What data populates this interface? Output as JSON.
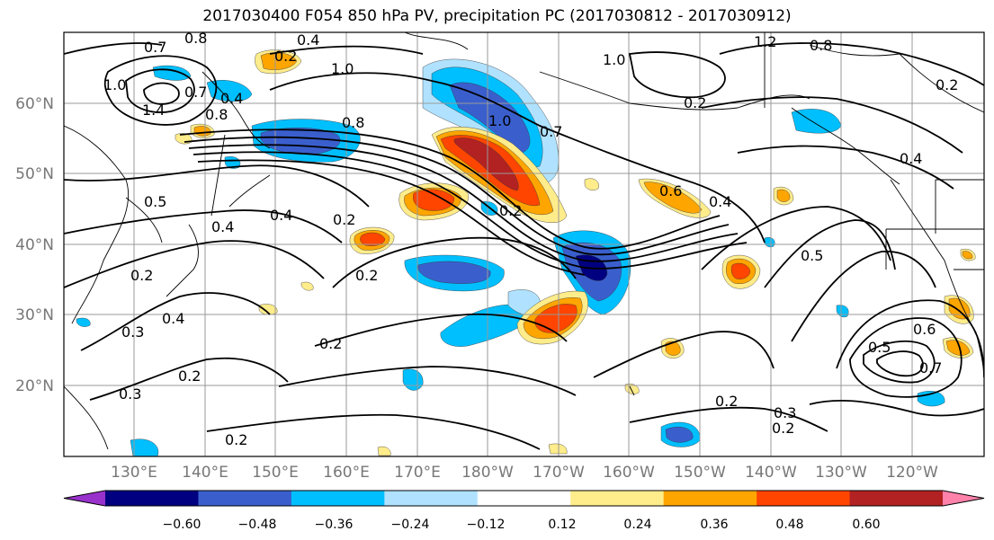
{
  "title": "2017030400 F054 850 hPa PV, precipitation PC (2017030812 - 2017030912)",
  "map": {
    "lat_ticks": [
      "60°N",
      "50°N",
      "40°N",
      "30°N",
      "20°N"
    ],
    "lon_ticks": [
      "130°E",
      "140°E",
      "150°E",
      "160°E",
      "170°E",
      "180°W",
      "170°W",
      "160°W",
      "150°W",
      "140°W",
      "130°W",
      "120°W"
    ],
    "contour_labels": [
      "0.7",
      "0.8",
      "0.4",
      "0.2",
      "1.0",
      "1.0",
      "1.0",
      "0.7",
      "0.4",
      "1.4",
      "0.8",
      "0.8",
      "1.0",
      "0.7",
      "0.6",
      "0.4",
      "0.4",
      "0.5",
      "0.4",
      "0.4",
      "0.2",
      "0.5",
      "0.2",
      "0.2",
      "0.4",
      "0.3",
      "0.2",
      "0.2",
      "0.3",
      "0.2",
      "0.2",
      "0.5",
      "0.6",
      "0.7",
      "0.3",
      "0.2",
      "0.2",
      "0.2",
      "0.2",
      "1.2",
      "0.8"
    ]
  },
  "colorbar": {
    "ticks": [
      "−0.60",
      "−0.48",
      "−0.36",
      "−0.24",
      "−0.12",
      "0.12",
      "0.24",
      "0.36",
      "0.48",
      "0.60"
    ],
    "colors": [
      "#9932cc",
      "#000080",
      "#3a5fcd",
      "#00bfff",
      "#b0e2ff",
      "#ffffff",
      "#ffec8b",
      "#ffa500",
      "#ff4500",
      "#b22222",
      "#ff82ab"
    ]
  },
  "shading_colors": {
    "neg_light": "#b0e2ff",
    "neg_mid": "#00bfff",
    "neg_strong": "#3a5fcd",
    "neg_max": "#000080",
    "pos_light": "#ffec8b",
    "pos_mid": "#ffa500",
    "pos_strong": "#ff4500",
    "pos_max": "#b22222"
  }
}
